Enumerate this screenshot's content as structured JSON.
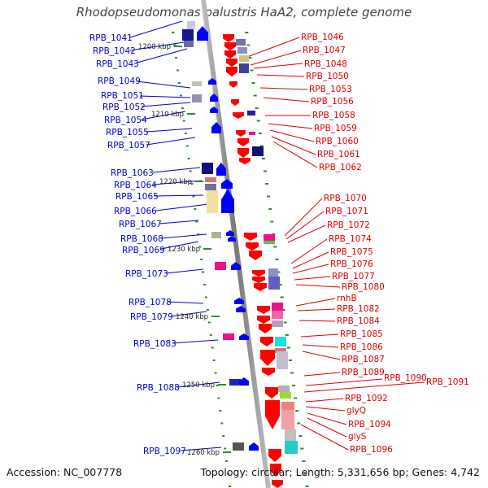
{
  "title": "Rhodopseudomonas palustris HaA2, complete genome",
  "accession": "Accession: NC_007778",
  "summary": "Topology: circular; Length: 5,331,656 bp; Genes: 4,742",
  "colors": {
    "left_label": "#0000cc",
    "right_label": "#dd0000",
    "backbone": "#8a8a8a",
    "ruler": "#2e8b2e"
  },
  "kbp_labels": [
    "1200 kbp",
    "1210 kbp",
    "1220 kbp",
    "1230 kbp",
    "1240 kbp",
    "1250 kbp",
    "1260 kbp"
  ],
  "left_labels": [
    "RPB_1041",
    "RPB_1042",
    "RPB_1043",
    "RPB_1049",
    "RPB_1051",
    "RPB_1052",
    "RPB_1054",
    "RPB_1055",
    "RPB_1057",
    "RPB_1063",
    "RPB_1064",
    "RPB_1065",
    "RPB_1066",
    "RPB_1067",
    "RPB_1068",
    "RPB_1069",
    "RPB_1073",
    "RPB_1078",
    "RPB_1079",
    "RPB_1083",
    "RPB_1088",
    "RPB_1097"
  ],
  "right_labels": [
    "RPB_1046",
    "RPB_1047",
    "RPB_1048",
    "RPB_1050",
    "RPB_1053",
    "RPB_1056",
    "RPB_1058",
    "RPB_1059",
    "RPB_1060",
    "RPB_1061",
    "RPB_1062",
    "RPB_1070",
    "RPB_1071",
    "RPB_1072",
    "RPB_1074",
    "RPB_1075",
    "RPB_1076",
    "RPB_1077",
    "RPB_1080",
    "rnhB",
    "RPB_1082",
    "RPB_1084",
    "RPB_1085",
    "RPB_1086",
    "RPB_1087",
    "RPB_1089",
    "RPB_1090",
    "RPB_1091",
    "RPB_1092",
    "glyQ",
    "RPB_1094",
    "glyS",
    "RPB_1096"
  ]
}
